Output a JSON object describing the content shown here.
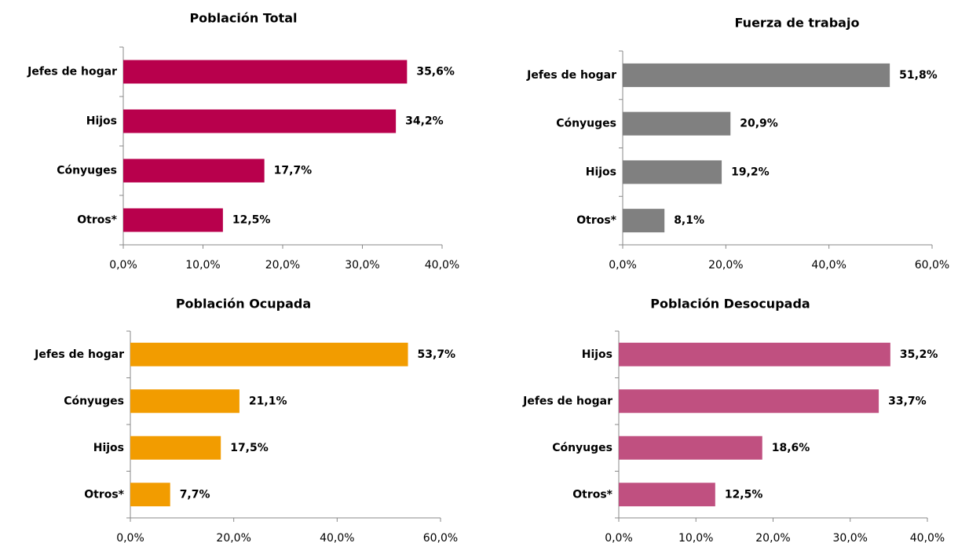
{
  "chart_data": [
    {
      "type": "bar",
      "orientation": "horizontal",
      "title": "Población Total",
      "color": "#b8004c",
      "categories": [
        "Jefes de hogar",
        "Hijos",
        "Cónyuges",
        "Otros*"
      ],
      "values": [
        35.6,
        34.2,
        17.7,
        12.5
      ],
      "value_labels": [
        "35,6%",
        "34,2%",
        "17,7%",
        "12,5%"
      ],
      "xlim": [
        0,
        40
      ],
      "xticks": [
        {
          "value": 0,
          "label": "0,0%"
        },
        {
          "value": 10,
          "label": "10,0%"
        },
        {
          "value": 20,
          "label": "20,0%"
        },
        {
          "value": 30,
          "label": "30,0%"
        },
        {
          "value": 40,
          "label": "40,0%"
        }
      ]
    },
    {
      "type": "bar",
      "orientation": "horizontal",
      "title": "Fuerza de trabajo",
      "color": "#808080",
      "categories": [
        "Jefes de hogar",
        "Cónyuges",
        "Hijos",
        "Otros*"
      ],
      "values": [
        51.8,
        20.9,
        19.2,
        8.1
      ],
      "value_labels": [
        "51,8%",
        "20,9%",
        "19,2%",
        "8,1%"
      ],
      "xlim": [
        0,
        60
      ],
      "xticks": [
        {
          "value": 0,
          "label": "0,0%"
        },
        {
          "value": 20,
          "label": "20,0%"
        },
        {
          "value": 40,
          "label": "40,0%"
        },
        {
          "value": 60,
          "label": "60,0%"
        }
      ]
    },
    {
      "type": "bar",
      "orientation": "horizontal",
      "title": "Población Ocupada",
      "color": "#f29c00",
      "categories": [
        "Jefes de hogar",
        "Cónyuges",
        "Hijos",
        "Otros*"
      ],
      "values": [
        53.7,
        21.1,
        17.5,
        7.7
      ],
      "value_labels": [
        "53,7%",
        "21,1%",
        "17,5%",
        "7,7%"
      ],
      "xlim": [
        0,
        60
      ],
      "xticks": [
        {
          "value": 0,
          "label": "0,0%"
        },
        {
          "value": 20,
          "label": "20,0%"
        },
        {
          "value": 40,
          "label": "40,0%"
        },
        {
          "value": 60,
          "label": "60,0%"
        }
      ]
    },
    {
      "type": "bar",
      "orientation": "horizontal",
      "title": "Población Desocupada",
      "color": "#c05080",
      "categories": [
        "Hijos",
        "Jefes de hogar",
        "Cónyuges",
        "Otros*"
      ],
      "values": [
        35.2,
        33.7,
        18.6,
        12.5
      ],
      "value_labels": [
        "35,2%",
        "33,7%",
        "18,6%",
        "12,5%"
      ],
      "xlim": [
        0,
        40
      ],
      "xticks": [
        {
          "value": 0,
          "label": "0,0%"
        },
        {
          "value": 10,
          "label": "10,0%"
        },
        {
          "value": 20,
          "label": "20,0%"
        },
        {
          "value": 30,
          "label": "30,0%"
        },
        {
          "value": 40,
          "label": "40,0%"
        }
      ]
    }
  ]
}
